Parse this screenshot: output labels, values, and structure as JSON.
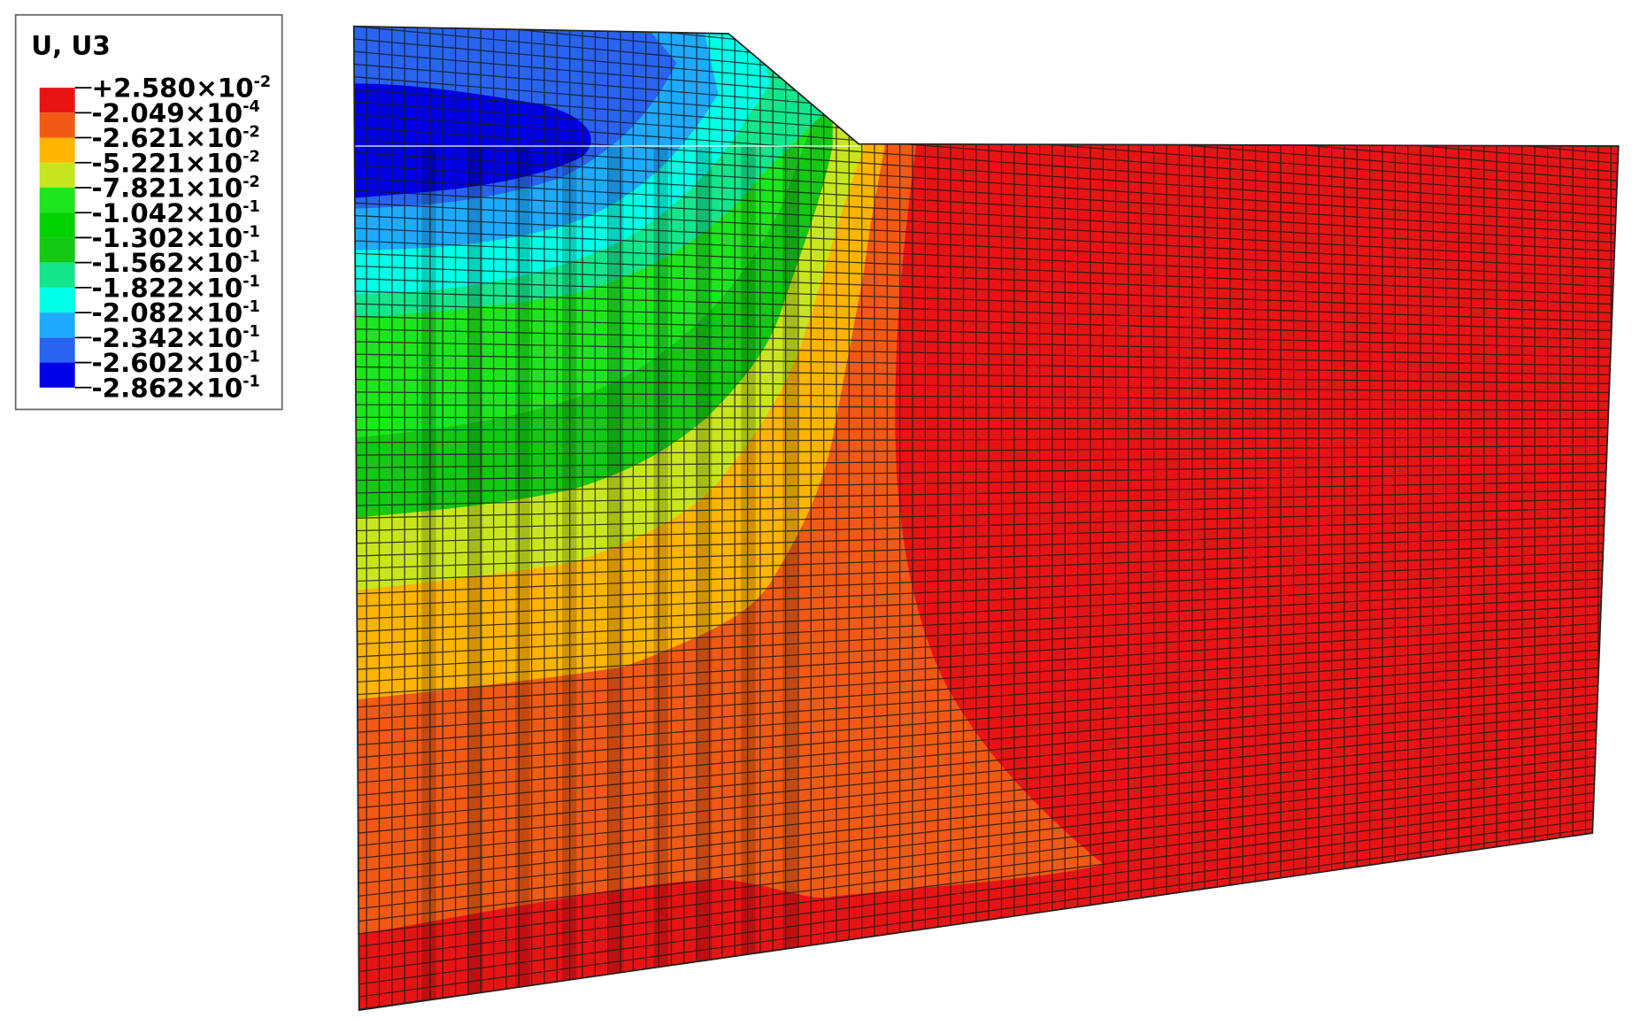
{
  "legend": {
    "title": "U, U3",
    "labels": [
      {
        "base": "+2.580×10",
        "exponent": "-2"
      },
      {
        "base": "-2.049×10",
        "exponent": "-4"
      },
      {
        "base": "-2.621×10",
        "exponent": "-2"
      },
      {
        "base": "-5.221×10",
        "exponent": "-2"
      },
      {
        "base": "-7.821×10",
        "exponent": "-2"
      },
      {
        "base": "-1.042×10",
        "exponent": "-1"
      },
      {
        "base": "-1.302×10",
        "exponent": "-1"
      },
      {
        "base": "-1.562×10",
        "exponent": "-1"
      },
      {
        "base": "-1.822×10",
        "exponent": "-1"
      },
      {
        "base": "-2.082×10",
        "exponent": "-1"
      },
      {
        "base": "-2.342×10",
        "exponent": "-1"
      },
      {
        "base": "-2.602×10",
        "exponent": "-1"
      },
      {
        "base": "-2.862×10",
        "exponent": "-1"
      }
    ],
    "colors": [
      "#e81414",
      "#f05a14",
      "#ffb400",
      "#c8e61e",
      "#1ee61e",
      "#00d200",
      "#14c814",
      "#14e68c",
      "#00ffe6",
      "#1eaaff",
      "#2864f0",
      "#0000e6"
    ]
  }
}
